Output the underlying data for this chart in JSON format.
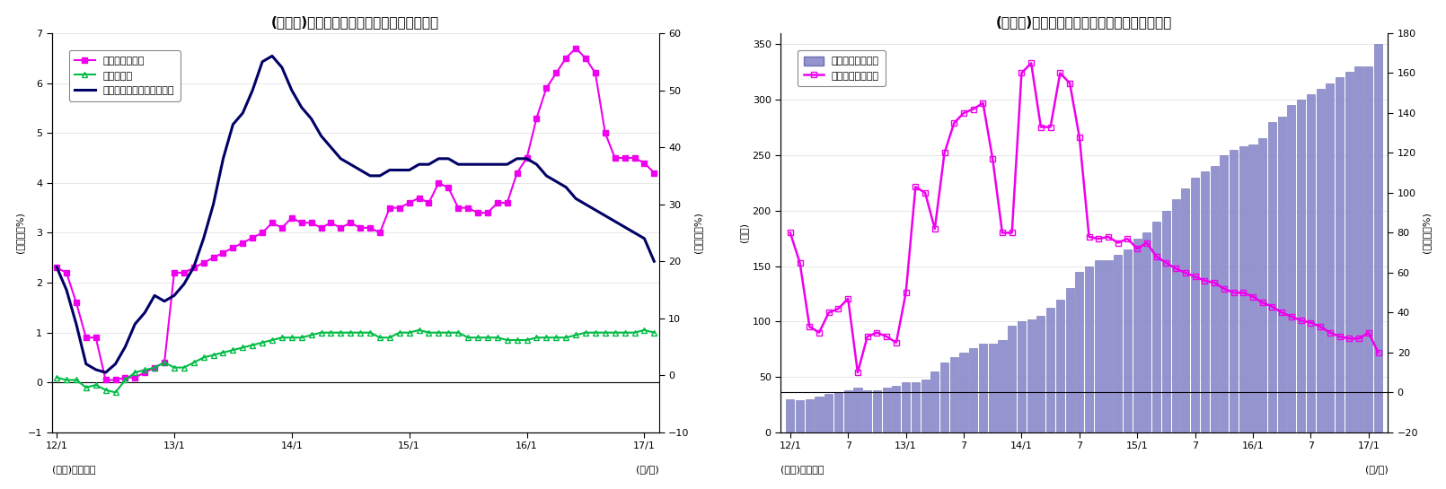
{
  "fig6": {
    "title": "(図表６)　マネタリーベース伸び率（平残）",
    "ylabel_left": "(前年比、%)",
    "ylabel_right": "(前年比、%)",
    "xlabel": "(年/月)",
    "source": "(資料)日本銀行",
    "ylim_left": [
      -1,
      7
    ],
    "ylim_right": [
      -10,
      60
    ],
    "yticks_left": [
      -1,
      0,
      1,
      2,
      3,
      4,
      5,
      6,
      7
    ],
    "yticks_right": [
      -10,
      0,
      10,
      20,
      30,
      40,
      50,
      60
    ],
    "xtick_positions": [
      0,
      12,
      24,
      36,
      48,
      60
    ],
    "xtick_labels": [
      "12/1",
      "13/1",
      "14/1",
      "15/1",
      "16/1",
      "17/1"
    ],
    "nishinken_color": "#EE00EE",
    "kahei_color": "#00BB44",
    "monetary_color": "#000066",
    "nishinken": [
      2.3,
      2.2,
      1.6,
      0.9,
      0.9,
      0.05,
      0.05,
      0.1,
      0.1,
      0.2,
      0.3,
      0.4,
      2.2,
      2.2,
      2.3,
      2.4,
      2.5,
      2.6,
      2.7,
      2.8,
      2.9,
      3.0,
      3.2,
      3.1,
      3.3,
      3.2,
      3.2,
      3.1,
      3.2,
      3.1,
      3.2,
      3.1,
      3.1,
      3.0,
      3.5,
      3.5,
      3.6,
      3.7,
      3.6,
      4.0,
      3.9,
      3.5,
      3.5,
      3.4,
      3.4,
      3.6,
      3.6,
      4.2,
      4.5,
      5.3,
      5.9,
      6.2,
      6.5,
      6.7,
      6.5,
      6.2,
      5.0,
      4.5,
      4.5,
      4.5,
      4.4,
      4.2
    ],
    "kahei": [
      0.1,
      0.05,
      0.05,
      -0.1,
      -0.05,
      -0.15,
      -0.2,
      0.05,
      0.2,
      0.25,
      0.3,
      0.4,
      0.3,
      0.3,
      0.4,
      0.5,
      0.55,
      0.6,
      0.65,
      0.7,
      0.75,
      0.8,
      0.85,
      0.9,
      0.9,
      0.9,
      0.95,
      1.0,
      1.0,
      1.0,
      1.0,
      1.0,
      1.0,
      0.9,
      0.9,
      1.0,
      1.0,
      1.05,
      1.0,
      1.0,
      1.0,
      1.0,
      0.9,
      0.9,
      0.9,
      0.9,
      0.85,
      0.85,
      0.85,
      0.9,
      0.9,
      0.9,
      0.9,
      0.95,
      1.0,
      1.0,
      1.0,
      1.0,
      1.0,
      1.0,
      1.05,
      1.0
    ],
    "monetary_base": [
      19,
      15,
      9,
      2,
      1,
      0.5,
      2,
      5,
      9,
      11,
      14,
      13,
      14,
      16,
      19,
      24,
      30,
      38,
      44,
      46,
      50,
      55,
      56,
      54,
      50,
      47,
      45,
      42,
      40,
      38,
      37,
      36,
      35,
      35,
      36,
      36,
      36,
      37,
      37,
      38,
      38,
      37,
      37,
      37,
      37,
      37,
      37,
      38,
      38,
      37,
      35,
      34,
      33,
      31,
      30,
      29,
      28,
      27,
      26,
      25,
      24,
      20
    ]
  },
  "fig7": {
    "title": "(図表７)　日銀当座顀金残高（平残）と伸び率",
    "ylabel_left": "(兆円)",
    "ylabel_right": "(前年比、%)",
    "xlabel": "(年/月)",
    "source": "(資料)日本銀行",
    "ylim_left": [
      0,
      360
    ],
    "ylim_right": [
      -20,
      180
    ],
    "yticks_left": [
      0,
      50,
      100,
      150,
      200,
      250,
      300,
      350
    ],
    "yticks_right": [
      -20,
      0,
      20,
      40,
      60,
      80,
      100,
      120,
      140,
      160,
      180
    ],
    "xtick_positions": [
      0,
      6,
      12,
      18,
      24,
      30,
      36,
      42,
      48,
      54,
      60
    ],
    "xtick_labels": [
      "12/1",
      "7",
      "13/1",
      "7",
      "14/1",
      "7",
      "15/1",
      "7",
      "16/1",
      "7",
      "17/1"
    ],
    "bar_color": "#8888CC",
    "bar_edge_color": "#6666AA",
    "line_color": "#EE00EE",
    "boj_deposits": [
      30,
      29,
      30,
      32,
      35,
      36,
      38,
      40,
      38,
      38,
      40,
      42,
      45,
      45,
      48,
      55,
      63,
      68,
      72,
      76,
      80,
      80,
      83,
      96,
      100,
      102,
      105,
      112,
      120,
      130,
      145,
      150,
      155,
      155,
      160,
      165,
      175,
      180,
      190,
      200,
      210,
      220,
      230,
      235,
      240,
      250,
      255,
      258,
      260,
      265,
      280,
      285,
      295,
      300,
      305,
      310,
      315,
      320,
      325,
      330,
      330,
      350
    ],
    "growth_rate": [
      80,
      65,
      33,
      30,
      40,
      42,
      47,
      10,
      28,
      30,
      28,
      25,
      50,
      103,
      100,
      82,
      120,
      135,
      140,
      142,
      145,
      117,
      80,
      80,
      160,
      165,
      133,
      133,
      160,
      155,
      128,
      78,
      77,
      78,
      75,
      77,
      72,
      75,
      68,
      65,
      62,
      60,
      58,
      56,
      55,
      52,
      50,
      50,
      48,
      45,
      43,
      40,
      38,
      36,
      35,
      33,
      30,
      28,
      27,
      27,
      30,
      20
    ],
    "legend_nishinken": "日銀当座顀金残高",
    "legend_growth": "同伸び率（右軸）"
  }
}
